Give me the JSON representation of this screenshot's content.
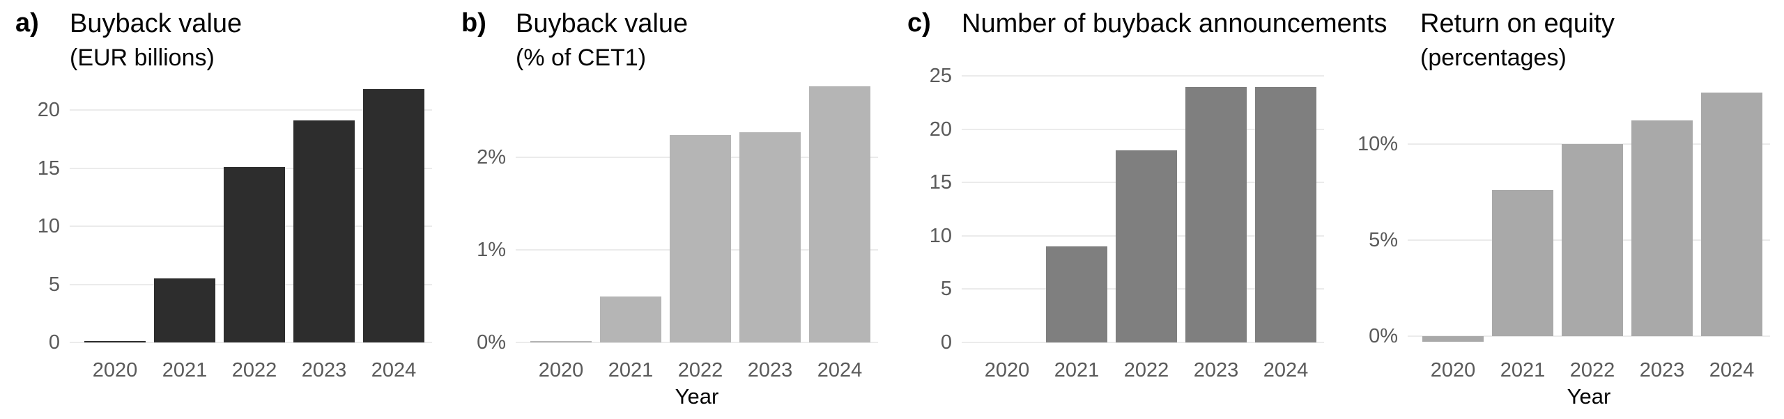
{
  "figure": {
    "background_color": "#ffffff",
    "grid_color": "#ebebeb",
    "tick_text_color": "#5a5a5a",
    "title_text_color": "#050505"
  },
  "chart_data": [
    {
      "type": "bar",
      "panel_label": "a)",
      "title": "Buyback value",
      "subtitle": "(EUR billions)",
      "xlabel": "",
      "ylabel": "",
      "categories": [
        "2020",
        "2021",
        "2022",
        "2023",
        "2024"
      ],
      "values": [
        0.1,
        5.5,
        15.1,
        19.1,
        21.8
      ],
      "bar_color": "#2d2d2d",
      "ylim": [
        0,
        23.5
      ],
      "grid": true,
      "legend": "none",
      "yticks": [
        {
          "v": 0,
          "label": "0"
        },
        {
          "v": 5,
          "label": "5"
        },
        {
          "v": 10,
          "label": "10"
        },
        {
          "v": 15,
          "label": "15"
        },
        {
          "v": 20,
          "label": "20"
        }
      ]
    },
    {
      "type": "bar",
      "panel_label": "b)",
      "title": "Buyback value",
      "subtitle": "(% of CET1)",
      "xlabel": "Year",
      "ylabel": "",
      "categories": [
        "2020",
        "2021",
        "2022",
        "2023",
        "2024"
      ],
      "values": [
        0.015,
        0.5,
        2.24,
        2.27,
        2.77
      ],
      "bar_color": "#b5b5b5",
      "ylim": [
        0,
        2.95
      ],
      "grid": true,
      "legend": "none",
      "yticks": [
        {
          "v": 0,
          "label": "0%"
        },
        {
          "v": 1,
          "label": "1%"
        },
        {
          "v": 2,
          "label": "2%"
        }
      ]
    },
    {
      "type": "bar",
      "panel_label": "c)",
      "title": "Number of buyback announcements",
      "subtitle": "",
      "xlabel": "",
      "ylabel": "",
      "categories": [
        "2020",
        "2021",
        "2022",
        "2023",
        "2024"
      ],
      "values": [
        0,
        9,
        18,
        24,
        24
      ],
      "bar_color": "#7f7f7f",
      "ylim": [
        0,
        25.6
      ],
      "grid": true,
      "legend": "none",
      "yticks": [
        {
          "v": 0,
          "label": "0"
        },
        {
          "v": 5,
          "label": "5"
        },
        {
          "v": 10,
          "label": "10"
        },
        {
          "v": 15,
          "label": "15"
        },
        {
          "v": 20,
          "label": "20"
        },
        {
          "v": 25,
          "label": "25"
        }
      ]
    },
    {
      "type": "bar",
      "panel_label": "",
      "title": "Return on equity",
      "subtitle": "(percentages)",
      "xlabel": "Year",
      "ylabel": "",
      "categories": [
        "2020",
        "2021",
        "2022",
        "2023",
        "2024"
      ],
      "values": [
        -0.3,
        7.6,
        10.0,
        11.25,
        12.7
      ],
      "bar_color": "#a9a9a9",
      "ylim": [
        -0.32,
        13.88
      ],
      "grid": true,
      "legend": "none",
      "yticks": [
        {
          "v": 0,
          "label": "0%"
        },
        {
          "v": 5,
          "label": "5%"
        },
        {
          "v": 10,
          "label": "10%"
        }
      ]
    }
  ]
}
